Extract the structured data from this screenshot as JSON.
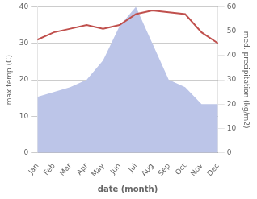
{
  "chart_data": {
    "type": "line",
    "xlabel": "date (month)",
    "ylabel": "max temp (C)",
    "y2label": "med. precipitation (kg/m2)",
    "categories": [
      "Jan",
      "Feb",
      "Mar",
      "Apr",
      "May",
      "Jun",
      "Jul",
      "Aug",
      "Sep",
      "Oct",
      "Nov",
      "Dec"
    ],
    "series": [
      {
        "type": "area",
        "axis": "y2",
        "color": "#bcc5e8",
        "values": [
          23,
          25,
          27,
          30,
          38,
          52,
          60,
          45,
          30,
          27,
          20,
          20
        ]
      },
      {
        "type": "line",
        "color": "#c0504d",
        "values": [
          31,
          33,
          34,
          35,
          34,
          35,
          38,
          39,
          38.5,
          38,
          33,
          30
        ]
      }
    ],
    "ylim": [
      0,
      40
    ],
    "yticks": [
      0,
      10,
      20,
      30,
      40
    ],
    "y2lim": [
      0,
      60
    ],
    "y2ticks": [
      0,
      10,
      20,
      30,
      40,
      50,
      60
    ],
    "grid": "y"
  }
}
